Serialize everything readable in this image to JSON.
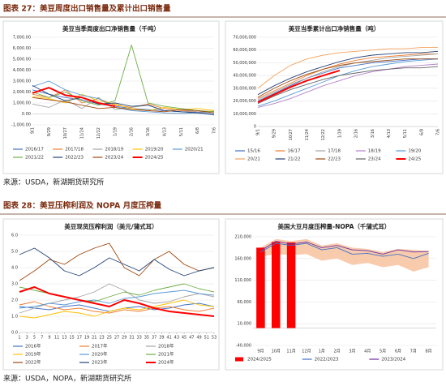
{
  "headers": [
    "图表 27：美豆周度出口销售量及累计出口销售量",
    "图表 28：美豆压榨利润及 NOPA 月度压榨量"
  ],
  "sources": [
    "来源：USDA，新湖期货研究所",
    "来源：USDA，NOPA，新湖期货研究所"
  ],
  "chart_data": [
    {
      "type": "line",
      "title": "美豆当季周度出口净销售量（千吨）",
      "categories": [
        "9/1",
        "9/29",
        "10/27",
        "11/24",
        "12/22",
        "1/19",
        "2/16",
        "3/16",
        "4/13",
        "5/11",
        "6/8",
        "7/6"
      ],
      "ylim": [
        -1000,
        7000
      ],
      "yticks": [
        {
          "value": 7000,
          "label": "7,000.00"
        },
        {
          "value": 6000,
          "label": "6,000.00"
        },
        {
          "value": 5000,
          "label": "5,000.00"
        },
        {
          "value": 4000,
          "label": "4,000.00"
        },
        {
          "value": 3000,
          "label": "3,000.00"
        },
        {
          "value": 2000,
          "label": "2,000.00"
        },
        {
          "value": 1000,
          "label": "1,000.00"
        },
        {
          "value": 0,
          "label": "0.00"
        },
        {
          "value": -1000,
          "label": "-1,000.00"
        }
      ],
      "series": [
        {
          "name": "2016/17",
          "color": "#4472c4",
          "values": [
            2200,
            1800,
            1500,
            1300,
            900,
            700,
            500,
            400,
            300,
            200,
            150,
            100
          ]
        },
        {
          "name": "2017/18",
          "color": "#ed7d31",
          "values": [
            1800,
            1500,
            2200,
            1000,
            1400,
            800,
            600,
            900,
            500,
            300,
            200,
            250
          ]
        },
        {
          "name": "2018/19",
          "color": "#a5a5a5",
          "values": [
            900,
            600,
            1300,
            500,
            1500,
            400,
            600,
            800,
            300,
            400,
            200,
            100
          ]
        },
        {
          "name": "2019/20",
          "color": "#ffc000",
          "values": [
            1600,
            1400,
            1000,
            1800,
            1200,
            900,
            500,
            300,
            600,
            400,
            500,
            300
          ]
        },
        {
          "name": "2020/21",
          "color": "#5b9bd5",
          "values": [
            2500,
            3000,
            2200,
            1700,
            1400,
            600,
            300,
            200,
            100,
            50,
            100,
            -100
          ]
        },
        {
          "name": "2021/22",
          "color": "#70ad47",
          "values": [
            2000,
            1500,
            2000,
            1200,
            800,
            1200,
            6300,
            1000,
            700,
            500,
            300,
            200
          ]
        },
        {
          "name": "2022/23",
          "color": "#264478",
          "values": [
            2600,
            1800,
            1200,
            1500,
            900,
            1000,
            700,
            800,
            300,
            200,
            100,
            -50
          ]
        },
        {
          "name": "2023/24",
          "color": "#9e480e",
          "values": [
            1500,
            1300,
            1100,
            800,
            500,
            600,
            400,
            300,
            200,
            400,
            300,
            100
          ]
        },
        {
          "name": "2024/25",
          "color": "#ff0000",
          "values": [
            1900,
            2400,
            1700,
            1500,
            1000,
            700,
            null,
            null,
            null,
            null,
            null,
            null
          ]
        }
      ]
    },
    {
      "type": "line",
      "title": "美豆当季累计出口净销售量（吨）",
      "categories": [
        "9/1",
        "9/29",
        "10/27",
        "11/24",
        "12/22",
        "1/19",
        "2/16",
        "3/16",
        "4/13",
        "5/11",
        "6/8",
        "7/6"
      ],
      "ylim": [
        0,
        70000000
      ],
      "yticks": [
        {
          "value": 70000000,
          "label": "70,000,000"
        },
        {
          "value": 60000000,
          "label": "60,000,000"
        },
        {
          "value": 50000000,
          "label": "50,000,000"
        },
        {
          "value": 40000000,
          "label": "40,000,000"
        },
        {
          "value": 30000000,
          "label": "30,000,000"
        },
        {
          "value": 20000000,
          "label": "20,000,000"
        },
        {
          "value": 10000000,
          "label": "10,000,000"
        },
        0
      ],
      "series": [
        {
          "name": "15/16",
          "color": "#4472c4",
          "values": [
            20000000,
            26000000,
            32000000,
            38000000,
            42000000,
            46000000,
            48000000,
            50000000,
            51000000,
            52000000,
            53000000,
            53000000
          ]
        },
        {
          "name": "16/17",
          "color": "#ed7d31",
          "values": [
            22000000,
            28000000,
            34000000,
            40000000,
            45000000,
            49000000,
            52000000,
            54000000,
            55000000,
            56000000,
            57000000,
            57000000
          ]
        },
        {
          "name": "17/18",
          "color": "#a5a5a5",
          "values": [
            21000000,
            27000000,
            33000000,
            38000000,
            43000000,
            47000000,
            50000000,
            52000000,
            54000000,
            55000000,
            56000000,
            57000000
          ]
        },
        {
          "name": "18/19",
          "color": "#b482c8",
          "values": [
            15000000,
            18000000,
            22000000,
            27000000,
            32000000,
            36000000,
            40000000,
            43000000,
            45000000,
            47000000,
            48000000,
            49000000
          ]
        },
        {
          "name": "19/20",
          "color": "#5b9bd5",
          "values": [
            16000000,
            20000000,
            25000000,
            30000000,
            35000000,
            40000000,
            44000000,
            47000000,
            49000000,
            51000000,
            52000000,
            53000000
          ]
        },
        {
          "name": "20/21",
          "color": "#f4a460",
          "values": [
            30000000,
            40000000,
            48000000,
            53000000,
            56000000,
            58000000,
            59000000,
            60000000,
            61000000,
            61000000,
            62000000,
            62000000
          ]
        },
        {
          "name": "21/22",
          "color": "#264478",
          "values": [
            25000000,
            32000000,
            38000000,
            43000000,
            47000000,
            51000000,
            54000000,
            56000000,
            57000000,
            58000000,
            58000000,
            59000000
          ]
        },
        {
          "name": "22/23",
          "color": "#9e480e",
          "values": [
            23000000,
            30000000,
            36000000,
            41000000,
            45000000,
            48000000,
            50000000,
            51000000,
            52000000,
            53000000,
            53000000,
            53000000
          ]
        },
        {
          "name": "23/24",
          "color": "#636363",
          "values": [
            18000000,
            24000000,
            29000000,
            33000000,
            37000000,
            40000000,
            42000000,
            44000000,
            45000000,
            46000000,
            46000000,
            47000000
          ]
        },
        {
          "name": "24/25",
          "color": "#ff0000",
          "values": [
            19000000,
            25000000,
            31000000,
            36000000,
            40000000,
            44000000,
            null,
            null,
            null,
            null,
            null,
            null
          ]
        }
      ]
    },
    {
      "type": "line",
      "title": "美豆现货压榨利润（美元/蒲式耳）",
      "x": [
        1,
        5,
        9,
        13,
        17,
        21,
        25,
        29,
        33,
        37,
        41,
        45,
        49,
        53
      ],
      "xlim": [
        1,
        53
      ],
      "xticks": [
        1,
        3,
        5,
        7,
        9,
        11,
        13,
        15,
        17,
        19,
        21,
        23,
        25,
        27,
        29,
        31,
        33,
        35,
        37,
        39,
        41,
        43,
        45,
        47,
        49,
        51,
        53
      ],
      "ylim": [
        0,
        6
      ],
      "yticks": [
        {
          "value": 6,
          "label": "6.0"
        },
        {
          "value": 5,
          "label": "5.0"
        },
        {
          "value": 4,
          "label": "4.0"
        },
        {
          "value": 3,
          "label": "3.0"
        },
        {
          "value": 2,
          "label": "2.0"
        },
        {
          "value": 1,
          "label": "1.0"
        },
        {
          "value": 0,
          "label": "0.0"
        }
      ],
      "series": [
        {
          "name": "2016年",
          "color": "#4472c4",
          "values": [
            1.6,
            1.5,
            1.4,
            1.6,
            1.7,
            1.5,
            1.3,
            1.5,
            1.6,
            1.4,
            1.5,
            1.7,
            1.8,
            1.6
          ]
        },
        {
          "name": "2017年",
          "color": "#ed7d31",
          "values": [
            1.7,
            1.9,
            1.6,
            1.4,
            1.5,
            1.3,
            1.2,
            1.4,
            1.3,
            1.5,
            1.6,
            1.4,
            1.3,
            1.5
          ]
        },
        {
          "name": "2018年",
          "color": "#a5a5a5",
          "values": [
            1.2,
            1.5,
            1.8,
            2.0,
            2.2,
            2.5,
            3.0,
            2.6,
            2.0,
            1.8,
            1.9,
            2.2,
            2.4,
            2.2
          ]
        },
        {
          "name": "2019年",
          "color": "#ffc000",
          "values": [
            1.0,
            0.9,
            1.1,
            1.3,
            1.2,
            1.0,
            1.3,
            1.5,
            1.4,
            1.6,
            1.8,
            2.0,
            1.7,
            1.6
          ]
        },
        {
          "name": "2020年",
          "color": "#5b9bd5",
          "values": [
            1.5,
            1.6,
            1.8,
            1.7,
            1.9,
            2.0,
            1.8,
            2.1,
            2.2,
            2.4,
            2.5,
            2.6,
            2.4,
            2.3
          ]
        },
        {
          "name": "2021年",
          "color": "#70ad47",
          "values": [
            2.8,
            2.6,
            2.4,
            2.2,
            2.0,
            1.9,
            2.2,
            2.5,
            2.3,
            2.6,
            2.8,
            3.0,
            2.7,
            2.5
          ]
        },
        {
          "name": "2022年",
          "color": "#9e480e",
          "values": [
            3.2,
            3.8,
            4.5,
            4.2,
            4.8,
            5.2,
            5.5,
            4.0,
            3.5,
            4.5,
            5.0,
            4.2,
            3.8,
            4.0
          ]
        },
        {
          "name": "2023年",
          "color": "#264478",
          "values": [
            4.8,
            5.2,
            4.6,
            3.8,
            3.5,
            4.0,
            4.6,
            4.2,
            3.8,
            4.5,
            3.9,
            3.5,
            3.8,
            4.0
          ]
        },
        {
          "name": "2024年",
          "color": "#ff0000",
          "values": [
            2.5,
            2.8,
            2.4,
            2.2,
            2.0,
            1.8,
            1.6,
            2.0,
            1.8,
            1.5,
            1.3,
            1.2,
            1.1,
            1.0
          ]
        }
      ]
    },
    {
      "type": "combo",
      "title": "美国大豆月度压榨量-NOPA（千蒲式耳）",
      "categories": [
        "9月",
        "10月",
        "11月",
        "12月",
        "1月",
        "2月",
        "3月",
        "4月",
        "5月",
        "6月",
        "7月",
        "8月"
      ],
      "ylim": [
        -40000,
        210000
      ],
      "yticks": [
        {
          "value": 210000,
          "label": "210,000"
        },
        {
          "value": 160000,
          "label": "160,000"
        },
        {
          "value": 110000,
          "label": "110,000"
        },
        {
          "value": 60000,
          "label": "60,000"
        },
        {
          "value": 10000,
          "label": "10,000"
        },
        {
          "value": -40000,
          "label": "-40,000"
        }
      ],
      "band": {
        "color": "#f8cbad",
        "low": [
          165000,
          170000,
          168000,
          170000,
          155000,
          160000,
          145000,
          150000,
          140000,
          145000,
          130000,
          140000
        ],
        "high": [
          185000,
          205000,
          200000,
          205000,
          190000,
          195000,
          185000,
          182000,
          175000,
          182000,
          180000,
          178000
        ]
      },
      "series": [
        {
          "name": "2024/2025",
          "type": "bar",
          "color": "#ff0000",
          "values": [
            185000,
            198000,
            197000,
            null,
            null,
            null,
            null,
            null,
            null,
            null,
            null,
            null
          ]
        },
        {
          "name": "2022/2023",
          "type": "line",
          "color": "#4472c4",
          "values": [
            175000,
            195000,
            190000,
            195000,
            180000,
            185000,
            170000,
            172000,
            165000,
            170000,
            160000,
            172000
          ]
        },
        {
          "name": "2023/2024",
          "type": "line",
          "color": "#7030a0",
          "values": [
            178000,
            200000,
            193000,
            198000,
            185000,
            190000,
            180000,
            178000,
            170000,
            180000,
            175000,
            176000
          ]
        }
      ]
    }
  ]
}
